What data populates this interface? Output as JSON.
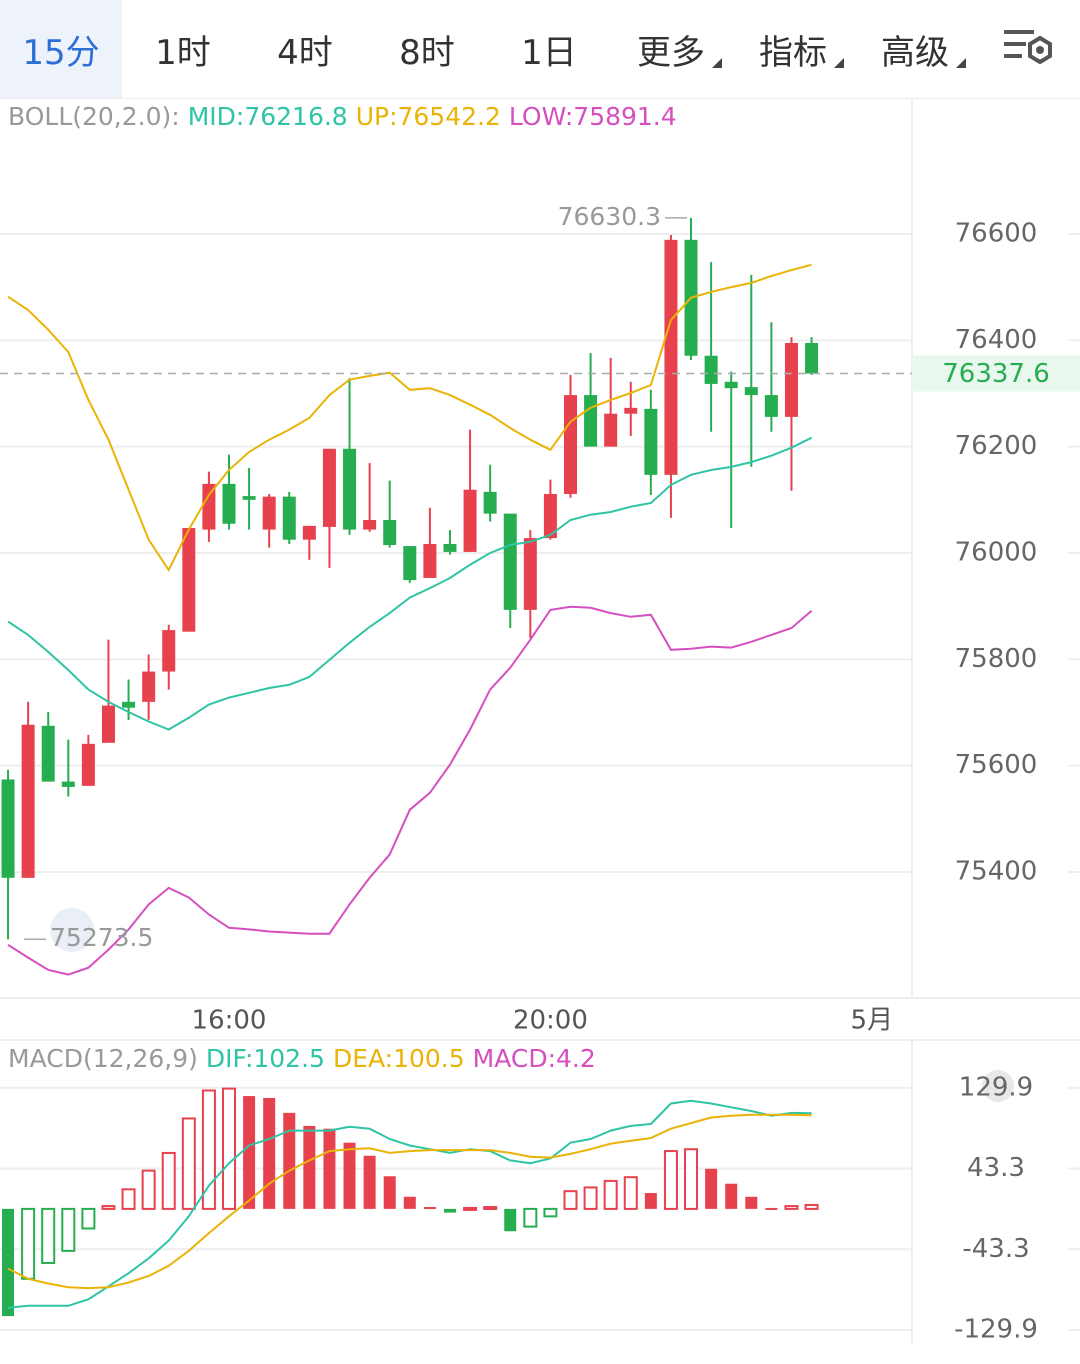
{
  "tabs": [
    {
      "label": "15分",
      "dropdown": false
    },
    {
      "label": "1时",
      "dropdown": false
    },
    {
      "label": "4时",
      "dropdown": false
    },
    {
      "label": "8时",
      "dropdown": false
    },
    {
      "label": "1日",
      "dropdown": false
    },
    {
      "label": "更多",
      "dropdown": true
    },
    {
      "label": "指标",
      "dropdown": true
    },
    {
      "label": "高级",
      "dropdown": true
    }
  ],
  "selected_tab": 0,
  "chart_data": [
    {
      "type": "candlestick",
      "indicator_label": "BOLL(20,2.0):",
      "up_color": "#e8414e",
      "down_color": "#26ad4f",
      "ohlc": [
        [
          75574,
          75592,
          75273.5,
          75389
        ],
        [
          75389,
          75720,
          75389,
          75677
        ],
        [
          75675,
          75701,
          75570,
          75570
        ],
        [
          75570,
          75649,
          75542,
          75560
        ],
        [
          75562,
          75658,
          75562,
          75641
        ],
        [
          75643,
          75837,
          75643,
          75713
        ],
        [
          75720,
          75762,
          75686,
          75709
        ],
        [
          75720,
          75809,
          75686,
          75777
        ],
        [
          75777,
          75865,
          75743,
          75855
        ],
        [
          75852,
          76047,
          75852,
          76047
        ],
        [
          76044,
          76153,
          76021,
          76130
        ],
        [
          76130,
          76185,
          76044,
          76055
        ],
        [
          76107,
          76160,
          76044,
          76100
        ],
        [
          76044,
          76111,
          76010,
          76106
        ],
        [
          76106,
          76115,
          76017,
          76025
        ],
        [
          76025,
          76051,
          75987,
          76051
        ],
        [
          76049,
          76196,
          75972,
          76196
        ],
        [
          76196,
          76329,
          76034,
          76044
        ],
        [
          76044,
          76169,
          76040,
          76062
        ],
        [
          76062,
          76136,
          76010,
          76015
        ],
        [
          76013,
          76013,
          75944,
          75949
        ],
        [
          75953,
          76085,
          75953,
          76017
        ],
        [
          76017,
          76043,
          75997,
          76002
        ],
        [
          76002,
          76232,
          76002,
          76119
        ],
        [
          76115,
          76166,
          76059,
          76074
        ],
        [
          76074,
          76074,
          75859,
          75893
        ],
        [
          75893,
          76043,
          75840,
          76028
        ],
        [
          76028,
          76138,
          76025,
          76111
        ],
        [
          76111,
          76335,
          76104,
          76297
        ],
        [
          76297,
          76376,
          76200,
          76200
        ],
        [
          76200,
          76367,
          76200,
          76262
        ],
        [
          76262,
          76322,
          76220,
          76273
        ],
        [
          76271,
          76307,
          76109,
          76147
        ],
        [
          76147,
          76598,
          76066,
          76589
        ],
        [
          76589,
          76630.3,
          76363,
          76371
        ],
        [
          76371,
          76547,
          76228,
          76318
        ],
        [
          76322,
          76341,
          76047,
          76310
        ],
        [
          76312,
          76523,
          76162,
          76297
        ],
        [
          76297,
          76434,
          76228,
          76256
        ],
        [
          76256,
          76406,
          76117,
          76395
        ],
        [
          76395,
          76406,
          76335,
          76337.6
        ]
      ],
      "series": [
        {
          "name": "MID:76216.8",
          "color": "#2ec4a5",
          "values": [
            75871,
            75846,
            75814,
            75780,
            75743,
            75720,
            75701,
            75683,
            75668,
            75690,
            75715,
            75728,
            75737,
            75746,
            75752,
            75767,
            75799,
            75831,
            75861,
            75887,
            75916,
            75934,
            75953,
            75978,
            76000,
            76015,
            76021,
            76034,
            76062,
            76072,
            76077,
            76087,
            76094,
            76128,
            76147,
            76156,
            76162,
            76171,
            76183,
            76198,
            76216.8
          ]
        },
        {
          "name": "UP:76542.2",
          "color": "#eab308",
          "values": [
            76482,
            76457,
            76420,
            76378,
            76288,
            76213,
            76119,
            76025,
            75968,
            76044,
            76109,
            76156,
            76190,
            76213,
            76232,
            76254,
            76297,
            76326,
            76333,
            76339,
            76307,
            76310,
            76297,
            76279,
            76260,
            76235,
            76213,
            76194,
            76247,
            76273,
            76288,
            76301,
            76316,
            76438,
            76480,
            76491,
            76500,
            76508,
            76521,
            76532,
            76542.2
          ]
        },
        {
          "name": "LOW:75891.4",
          "color": "#d64fbf",
          "values": [
            75263,
            75239,
            75216,
            75207,
            75220,
            75254,
            75292,
            75339,
            75370,
            75352,
            75320,
            75295,
            75292,
            75288,
            75286,
            75284,
            75284,
            75339,
            75389,
            75433,
            75517,
            75549,
            75602,
            75668,
            75743,
            75784,
            75837,
            75893,
            75899,
            75897,
            75887,
            75880,
            75884,
            75818,
            75820,
            75824,
            75822,
            75833,
            75846,
            75859,
            75891.4
          ]
        }
      ],
      "xlim": [
        -0.4,
        45
      ],
      "xticks": [
        {
          "value": 11,
          "label": "16:00"
        },
        {
          "value": 27,
          "label": "20:00"
        },
        {
          "value": 43,
          "label": "5月"
        }
      ],
      "ylim": [
        75163,
        76852
      ],
      "yticks": [
        75400,
        75600,
        75800,
        76000,
        76200,
        76400,
        76600
      ],
      "grid": true
    },
    {
      "type": "macd",
      "indicator_label": "MACD(12,26,9)",
      "up_color": "#e8414e",
      "down_color": "#26ad4f",
      "series": [
        {
          "name": "DIF:102.5",
          "color": "#2ec4a5",
          "values": [
            -106,
            -104,
            -104,
            -104,
            -97,
            -83,
            -69,
            -53,
            -34,
            -8,
            25,
            49,
            68,
            75,
            84,
            84,
            84,
            88,
            86,
            75,
            68,
            64,
            60,
            64,
            62,
            52,
            49,
            54,
            71,
            75,
            84,
            89,
            91,
            113,
            116,
            113,
            109,
            105,
            100,
            103,
            102.5
          ]
        },
        {
          "name": "DEA:100.5",
          "color": "#eab308",
          "values": [
            -64,
            -75,
            -80,
            -84,
            -85,
            -84,
            -79,
            -72,
            -61,
            -45,
            -26,
            -8,
            9,
            27,
            41,
            52,
            62,
            64,
            65,
            60,
            62,
            63,
            63,
            63,
            63,
            60,
            56,
            55,
            59,
            64,
            70,
            73,
            76,
            86,
            92,
            98,
            100,
            101,
            101,
            101,
            100.5
          ]
        },
        {
          "name": "MACD:4.2",
          "color": "#d64fbf",
          "kind": "histogram",
          "values": [
            -115,
            -75,
            -58,
            -45,
            -21,
            3,
            21,
            41,
            60,
            97,
            127,
            129,
            121,
            119,
            103,
            89,
            86,
            71,
            57,
            35,
            13,
            2,
            -4,
            1,
            2,
            -24,
            -19,
            -8,
            19,
            23,
            30,
            34,
            17,
            62,
            64,
            43,
            27,
            13,
            1,
            3,
            4.2
          ]
        }
      ],
      "xlim": [
        -0.4,
        45
      ],
      "ylim": [
        -146,
        179
      ],
      "yticks": [
        -129.9,
        -43.3,
        43.3,
        129.9
      ],
      "grid": true
    }
  ]
}
